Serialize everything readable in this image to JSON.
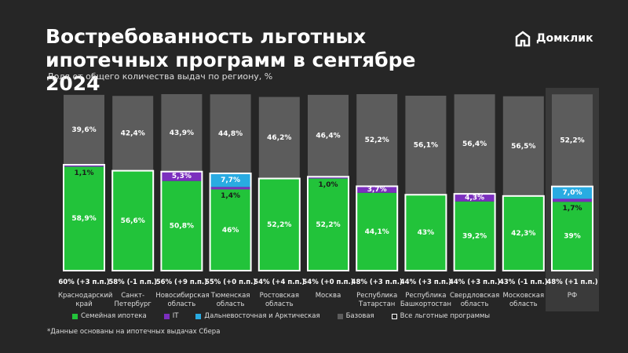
{
  "brand": "Домклик",
  "footnote": "*Данные основаны на ипотечных выдачах Сбера",
  "chart_data": {
    "type": "stacked_bar",
    "title": "Востребованность льготных ипотечных программ в сентябре 2024",
    "subtitle": "Доля от общего количества выдач по региону, %",
    "categories": [
      "Краснодарский край",
      "Санкт-Петербург",
      "Новосибирская область",
      "Тюменская область",
      "Ростовская область",
      "Москва",
      "Республика Татарстан",
      "Республика Башкортостан",
      "Свердловская область",
      "Московская область",
      "РФ"
    ],
    "totals": [
      "60% (+3 п.п.)",
      "58% (-1 п.п.)",
      "56% (+9 п.п.)",
      "55% (+0 п.п.)",
      "54% (+4 п.п.)",
      "54% (+0 п.п.)",
      "48% (+3 п.п.)",
      "44% (+3 п.п.)",
      "44% (+3 п.п.)",
      "43% (-1 п.п.)",
      "48% (+1 п.п.)"
    ],
    "ylim": [
      0,
      100
    ],
    "series": [
      {
        "name": "Семейная ипотека",
        "color": "#22c33a",
        "values": [
          58.9,
          56.6,
          50.8,
          46,
          52.2,
          52.2,
          44.1,
          43,
          39.2,
          42.3,
          39
        ],
        "value_labels": [
          "58,9%",
          "56,6%",
          "50,8%",
          "46%",
          "52,2%",
          "52,2%",
          "44,1%",
          "43%",
          "39,2%",
          "42,3%",
          "39%"
        ]
      },
      {
        "name": "IT",
        "color": "#7b2fbe",
        "values": [
          1.1,
          null,
          5.3,
          1.4,
          null,
          1.0,
          3.7,
          null,
          4.3,
          null,
          1.7
        ],
        "value_labels": [
          "1,1%",
          null,
          "5,3%",
          "1,4%",
          null,
          "1,0%",
          "3,7%",
          null,
          "4,3%",
          null,
          "1,7%"
        ]
      },
      {
        "name": "Дальневосточная и Арктическая",
        "color": "#29abe2",
        "values": [
          null,
          null,
          null,
          7.7,
          null,
          null,
          null,
          null,
          null,
          null,
          7.0
        ],
        "value_labels": [
          null,
          null,
          null,
          "7,7%",
          null,
          null,
          null,
          null,
          null,
          null,
          "7,0%"
        ]
      },
      {
        "name": "Базовая",
        "color": "#5c5c5c",
        "values": [
          39.6,
          42.4,
          43.9,
          44.8,
          46.2,
          46.4,
          52.2,
          56.1,
          56.4,
          56.5,
          52.2
        ],
        "value_labels": [
          "39,6%",
          "42,4%",
          "43,9%",
          "44,8%",
          "46,2%",
          "46,4%",
          "52,2%",
          "56,1%",
          "56,4%",
          "56,5%",
          "52,2%"
        ]
      }
    ],
    "outline_legend": "Все льготные программы"
  }
}
